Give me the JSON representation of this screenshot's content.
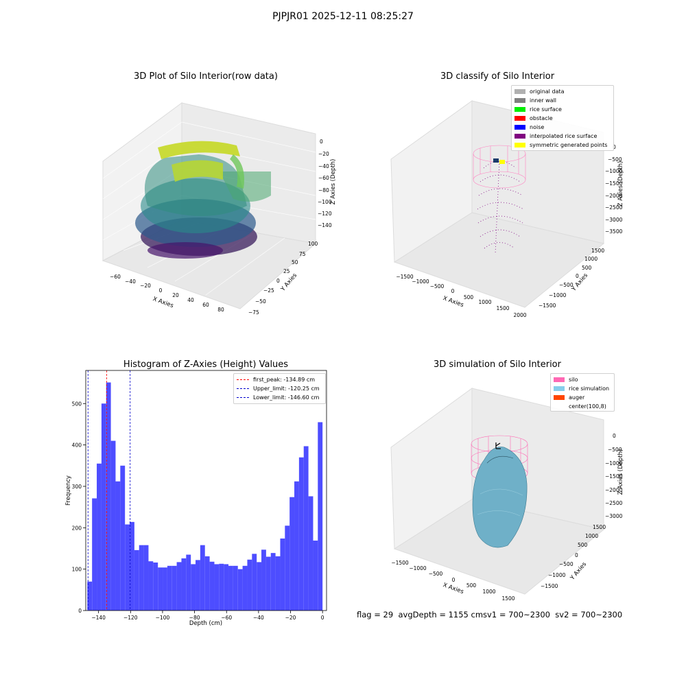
{
  "figure": {
    "suptitle": "PJPJR01 2025-12-11 08:25:27",
    "footer_text": "flag = 29  avgDepth = 1155 cmsv1 = 700~2300  sv2 = 700~2300"
  },
  "panels": {
    "raw": {
      "title": "3D Plot of Silo Interior(row data)",
      "xlabel": "X Axies",
      "ylabel": "Y Axies",
      "zlabel": "Z Axies (Depth)",
      "xticks": [
        "−60",
        "−40",
        "−20",
        "0",
        "20",
        "40",
        "60",
        "80"
      ],
      "yticks": [
        "−75",
        "−50",
        "−25",
        "0",
        "25",
        "50",
        "75",
        "100"
      ],
      "zticks": [
        "0",
        "−20",
        "−40",
        "−60",
        "−80",
        "−100",
        "−120",
        "−140"
      ]
    },
    "classify": {
      "title": "3D classify of Silo Interior",
      "xlabel": "X Axies",
      "ylabel": "Y Axies",
      "zlabel": "Z Axies (Depth)",
      "xticks": [
        "−1500",
        "−1000",
        "−500",
        "0",
        "500",
        "1000",
        "1500",
        "2000"
      ],
      "yticks": [
        "−1500",
        "−1000",
        "−500",
        "0",
        "500",
        "1000",
        "1500"
      ],
      "zticks": [
        "0",
        "−500",
        "−1000",
        "−1500",
        "−2000",
        "−2500",
        "−3000",
        "−3500"
      ],
      "legend": [
        {
          "label": "original data",
          "color": "#b0b0b0"
        },
        {
          "label": "inner wall",
          "color": "#808080"
        },
        {
          "label": "rice surface",
          "color": "#00ee00"
        },
        {
          "label": "obstacle",
          "color": "#ff0000"
        },
        {
          "label": "noise",
          "color": "#0000ff"
        },
        {
          "label": "interpolated rice surface",
          "color": "#800080"
        },
        {
          "label": "symmetric generated points",
          "color": "#ffff00"
        }
      ]
    },
    "simulation": {
      "title": "3D simulation of Silo Interior",
      "xlabel": "X Axies",
      "ylabel": "Y Axies",
      "zlabel": "Z Axies (Depth)",
      "xticks": [
        "−1500",
        "−1000",
        "−500",
        "0",
        "500",
        "1000",
        "1500"
      ],
      "yticks": [
        "−1500",
        "−1000",
        "−500",
        "0",
        "500",
        "1000",
        "1500"
      ],
      "zticks": [
        "0",
        "−500",
        "−1000",
        "−1500",
        "−2000",
        "−2500",
        "−3000"
      ],
      "legend": [
        {
          "label": "silo",
          "color": "#ff69b4"
        },
        {
          "label": "rice simulation",
          "color": "#87ceeb"
        },
        {
          "label": "auger",
          "color": "#ff4500"
        },
        {
          "label": "center(100,8)",
          "color": ""
        }
      ]
    }
  },
  "chart_data": {
    "type": "bar",
    "title": "Histogram of Z-Axies (Height) Values",
    "xlabel": "Depth (cm)",
    "ylabel": "Frequency",
    "bar_color": "#4d4dff",
    "xlim": [
      -148,
      2.5
    ],
    "ylim": [
      0,
      580
    ],
    "xticks": [
      -140,
      -120,
      -100,
      -80,
      -60,
      -40,
      -20,
      0
    ],
    "xtick_labels": [
      "−140",
      "−120",
      "−100",
      "−80",
      "−60",
      "−40",
      "−20",
      "0"
    ],
    "yticks": [
      0,
      100,
      200,
      300,
      400,
      500
    ],
    "bin_start": -147.0,
    "bin_width": 2.94,
    "values": [
      70,
      271,
      355,
      500,
      551,
      410,
      312,
      350,
      208,
      214,
      146,
      158,
      158,
      119,
      116,
      104,
      104,
      108,
      108,
      117,
      126,
      135,
      112,
      122,
      158,
      131,
      118,
      112,
      113,
      112,
      108,
      108,
      100,
      108,
      123,
      137,
      117,
      147,
      130,
      139,
      131,
      174,
      205,
      274,
      312,
      370,
      397,
      276,
      169,
      455
    ],
    "vlines": [
      {
        "label": "first_peak: -134.89 cm",
        "x": -134.89,
        "color": "#ff0000"
      },
      {
        "label": "Upper_limit: -120.25 cm",
        "x": -120.25,
        "color": "#0000cc"
      },
      {
        "label": "Lower_limit: -146.60 cm",
        "x": -146.6,
        "color": "#0000cc"
      }
    ]
  }
}
